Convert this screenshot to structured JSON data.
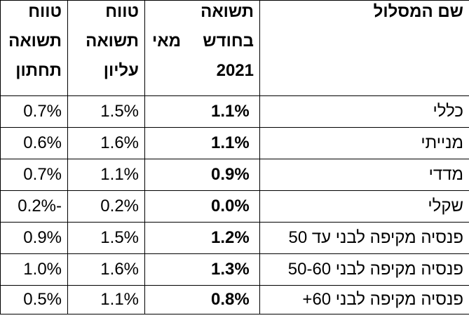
{
  "headers": {
    "name": "שם המסלול",
    "return_line1": "תשואה",
    "return_line2": "בחודש",
    "return_month": "מאי",
    "return_line3": "2021",
    "upper_line1": "טווח",
    "upper_line2": "תשואה",
    "upper_line3": "עליון",
    "lower_line1": "טווח",
    "lower_line2": "תשואה",
    "lower_line3": "תחתון"
  },
  "rows": [
    {
      "name": "כללי",
      "return": "1.1%",
      "upper": "1.5%",
      "lower": "0.7%"
    },
    {
      "name": "מנייתי",
      "return": "1.1%",
      "upper": "1.6%",
      "lower": "0.6%"
    },
    {
      "name": "מדדי",
      "return": "0.9%",
      "upper": "1.1%",
      "lower": "0.7%"
    },
    {
      "name": "שקלי",
      "return": "0.0%",
      "upper": "0.2%",
      "lower": "-0.2%"
    },
    {
      "name": "פנסיה מקיפה לבני עד 50",
      "return": "1.2%",
      "upper": "1.5%",
      "lower": "0.9%"
    },
    {
      "name": "פנסיה מקיפה לבני 50-60",
      "return": "1.3%",
      "upper": "1.6%",
      "lower": "1.0%"
    },
    {
      "name": "פנסיה מקיפה לבני 60+",
      "return": "0.8%",
      "upper": "1.1%",
      "lower": "0.5%"
    }
  ]
}
